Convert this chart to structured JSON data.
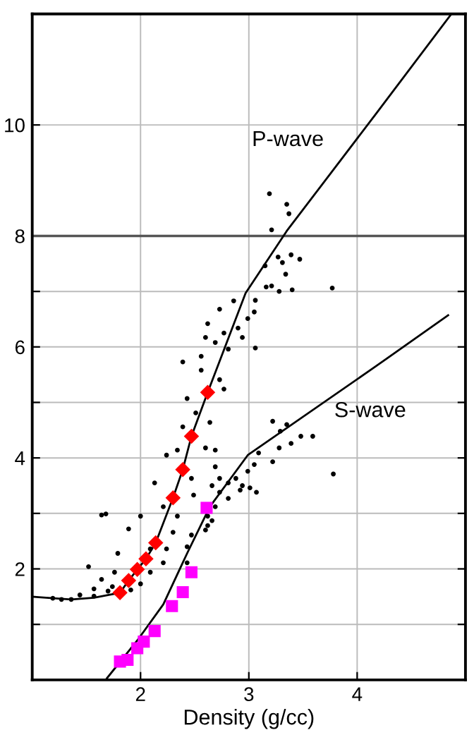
{
  "chart_data": {
    "type": "scatter",
    "xlabel": "Density (g/cc)",
    "xlim": [
      1,
      5
    ],
    "xticks": [
      2,
      3,
      4
    ],
    "ylim": [
      0,
      12
    ],
    "yticks": [
      {
        "value": 1,
        "label": null
      },
      2,
      {
        "value": 3,
        "label": null
      },
      4,
      {
        "value": 5,
        "label": null
      },
      6,
      {
        "value": 7,
        "label": null
      },
      8,
      10
    ],
    "grid": true,
    "ref_lines": [
      {
        "axis": "y",
        "value": 8,
        "label": null,
        "color": "#555555",
        "line_style": "solid"
      }
    ],
    "annotations": [
      "P-wave",
      "S-wave"
    ],
    "series": [
      {
        "color": "#000000",
        "marker": "circle",
        "x": [
          3.19,
          3.35,
          3.37,
          3.21,
          3.27,
          3.39,
          3.47,
          3.31,
          3.34,
          3.15,
          3.77,
          3.4,
          3.28,
          3.16,
          3.21,
          3.06,
          3.05,
          2.99,
          3.06,
          2.86,
          2.73,
          2.62,
          2.6,
          2.69,
          2.77,
          2.9,
          2.94,
          2.81,
          2.56,
          2.39,
          2.56,
          2.73,
          2.77,
          2.43,
          2.51,
          2.64,
          2.39,
          2.6,
          2.69,
          2.34,
          2.24,
          2.69,
          2.47,
          2.13,
          2.49,
          2.21,
          2.34,
          2.0,
          1.68,
          1.64,
          1.89,
          2.3,
          2.47,
          2.24,
          2.43,
          2.09,
          1.79,
          2.21,
          1.52,
          1.76,
          2.09,
          1.64,
          2.0,
          1.57,
          1.74,
          1.91,
          1.44,
          1.36,
          1.57,
          1.7,
          1.27,
          1.19,
          2.43,
          2.66,
          2.6
        ],
        "values": [
          8.76,
          8.57,
          8.4,
          8.11,
          7.62,
          7.66,
          7.58,
          7.52,
          7.31,
          7.46,
          7.06,
          7.03,
          7.0,
          7.08,
          7.1,
          6.84,
          6.63,
          6.51,
          5.98,
          6.83,
          6.68,
          6.42,
          6.17,
          6.08,
          6.25,
          6.34,
          6.17,
          5.96,
          5.83,
          5.73,
          5.58,
          5.41,
          5.24,
          5.07,
          4.81,
          4.64,
          4.56,
          4.18,
          4.14,
          4.14,
          4.05,
          3.84,
          3.63,
          3.55,
          3.33,
          3.12,
          2.95,
          2.95,
          2.99,
          2.97,
          2.72,
          2.66,
          2.61,
          2.36,
          2.4,
          2.36,
          2.28,
          2.11,
          2.04,
          1.94,
          1.94,
          1.81,
          1.73,
          1.64,
          1.68,
          1.62,
          1.53,
          1.45,
          1.51,
          1.6,
          1.45,
          1.47,
          2.11,
          2.87,
          2.7
        ]
      },
      {
        "color": "#000000",
        "marker": "circle",
        "x": [
          3.22,
          3.35,
          3.29,
          3.39,
          3.48,
          3.59,
          3.28,
          3.09,
          3.22,
          3.05,
          2.99,
          3.78,
          2.88,
          2.94,
          3.01,
          3.07,
          2.92,
          2.81,
          2.73,
          2.66,
          2.73,
          2.81,
          2.62,
          2.62,
          2.69
        ],
        "values": [
          4.66,
          4.6,
          4.48,
          4.26,
          4.39,
          4.39,
          4.18,
          4.09,
          3.93,
          3.88,
          3.76,
          3.71,
          3.63,
          3.5,
          3.46,
          3.38,
          3.42,
          3.55,
          3.63,
          3.5,
          3.38,
          3.27,
          2.95,
          2.78,
          3.12
        ]
      },
      {
        "type": "line",
        "color": "#000000",
        "marker": "none",
        "x": [
          1.0,
          1.06,
          1.36,
          1.57,
          1.81,
          1.89,
          1.97,
          2.05,
          2.14,
          2.3,
          2.39,
          2.47,
          2.62,
          2.97,
          3.35,
          4.17,
          4.87
        ],
        "values": [
          1.5,
          1.49,
          1.45,
          1.48,
          1.57,
          1.79,
          1.99,
          2.18,
          2.47,
          3.28,
          3.79,
          4.39,
          5.18,
          6.97,
          8.09,
          10.19,
          12.0
        ]
      },
      {
        "type": "line",
        "color": "#000000",
        "marker": "none",
        "x": [
          1.69,
          1.97,
          2.21,
          2.43,
          2.64,
          2.99,
          4.15,
          4.84
        ],
        "values": [
          0.03,
          0.71,
          1.36,
          2.28,
          3.12,
          4.05,
          5.62,
          6.57
        ]
      },
      {
        "type": "scatter",
        "color": "#ff0000",
        "marker": "diamond",
        "x": [
          1.81,
          1.89,
          1.97,
          2.05,
          2.14,
          2.3,
          2.39,
          2.47,
          2.62
        ],
        "values": [
          1.57,
          1.79,
          1.99,
          2.18,
          2.47,
          3.28,
          3.79,
          4.39,
          5.18
        ]
      },
      {
        "type": "scatter",
        "color": "#ff00ff",
        "marker": "square",
        "x": [
          1.81,
          1.88,
          1.97,
          2.03,
          2.13,
          2.29,
          2.39,
          2.47,
          2.61
        ],
        "values": [
          0.33,
          0.36,
          0.57,
          0.69,
          0.88,
          1.33,
          1.58,
          1.94,
          3.1
        ]
      }
    ]
  }
}
